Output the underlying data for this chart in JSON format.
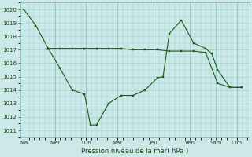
{
  "series1_x": [
    0,
    0.33,
    0.67,
    1.0,
    1.33,
    1.67,
    1.83,
    2.0,
    2.33,
    2.67,
    3.0,
    3.33,
    3.67,
    3.83,
    4.0,
    4.33,
    4.67,
    5.0,
    5.17,
    5.33,
    5.67,
    6.0
  ],
  "series1_y": [
    1020,
    1018.8,
    1017.1,
    1015.6,
    1014.0,
    1013.7,
    1011.4,
    1011.4,
    1013.0,
    1013.6,
    1013.6,
    1014.0,
    1014.9,
    1015.0,
    1018.2,
    1019.2,
    1017.5,
    1017.1,
    1016.7,
    1015.5,
    1014.2,
    1014.2
  ],
  "series2_x": [
    0.67,
    1.0,
    1.33,
    1.67,
    2.0,
    2.33,
    2.67,
    3.0,
    3.33,
    3.67,
    4.0,
    4.33,
    4.67,
    5.0,
    5.33,
    5.67,
    6.0
  ],
  "series2_y": [
    1017.1,
    1017.1,
    1017.1,
    1017.1,
    1017.1,
    1017.1,
    1017.1,
    1017.0,
    1017.0,
    1017.0,
    1016.9,
    1016.9,
    1016.9,
    1016.8,
    1014.5,
    1014.2,
    1014.2
  ],
  "line_color": "#1a5c1a",
  "bg_color": "#cce8e8",
  "grid_color": "#99cccc",
  "text_color": "#1a4a1a",
  "xlabel": "Pression niveau de la mer( hPa )",
  "ylim": [
    1010.5,
    1020.5
  ],
  "yticks": [
    1011,
    1012,
    1013,
    1014,
    1015,
    1016,
    1017,
    1018,
    1019,
    1020
  ],
  "day_positions": [
    0,
    0.857,
    1.714,
    2.571,
    3.571,
    4.571,
    5.286,
    5.857
  ],
  "day_labels": [
    "Ma",
    "Mer",
    "Lun",
    "Mar",
    "Jeu",
    "Ven",
    "Sam",
    "Dim"
  ],
  "xlim": [
    -0.1,
    6.2
  ]
}
